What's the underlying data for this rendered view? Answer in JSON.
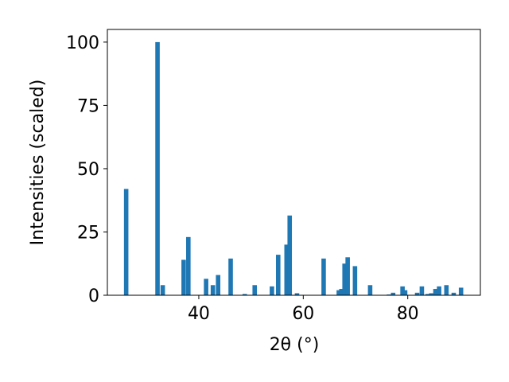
{
  "chart_data": {
    "type": "bar",
    "xlabel": "2θ (°)",
    "ylabel": "Intensities (scaled)",
    "x": [
      26.1,
      32.1,
      33.1,
      37.1,
      38.0,
      41.4,
      42.7,
      43.7,
      46.1,
      48.8,
      50.7,
      54.0,
      55.2,
      56.8,
      57.4,
      58.8,
      63.9,
      66.8,
      67.3,
      67.9,
      68.5,
      69.9,
      72.8,
      76.4,
      77.2,
      79.0,
      79.5,
      81.8,
      82.7,
      83.8,
      84.5,
      85.3,
      86.0,
      87.4,
      88.8,
      90.2
    ],
    "values": [
      42,
      100,
      4,
      14,
      23,
      6.5,
      4,
      8,
      14.5,
      0.5,
      4,
      3.5,
      16,
      20,
      31.5,
      0.8,
      14.5,
      2,
      2.5,
      12.5,
      15,
      11.5,
      4,
      0.3,
      1,
      3.5,
      2,
      1,
      3.5,
      0.5,
      0.8,
      2.5,
      3.5,
      4,
      1,
      3
    ],
    "color": "#1f77b4",
    "xlim": [
      22.5,
      93.9
    ],
    "xticks": [
      40,
      60,
      80
    ],
    "ylim": [
      0,
      105
    ],
    "yticks": [
      0,
      25,
      50,
      75,
      100
    ]
  }
}
